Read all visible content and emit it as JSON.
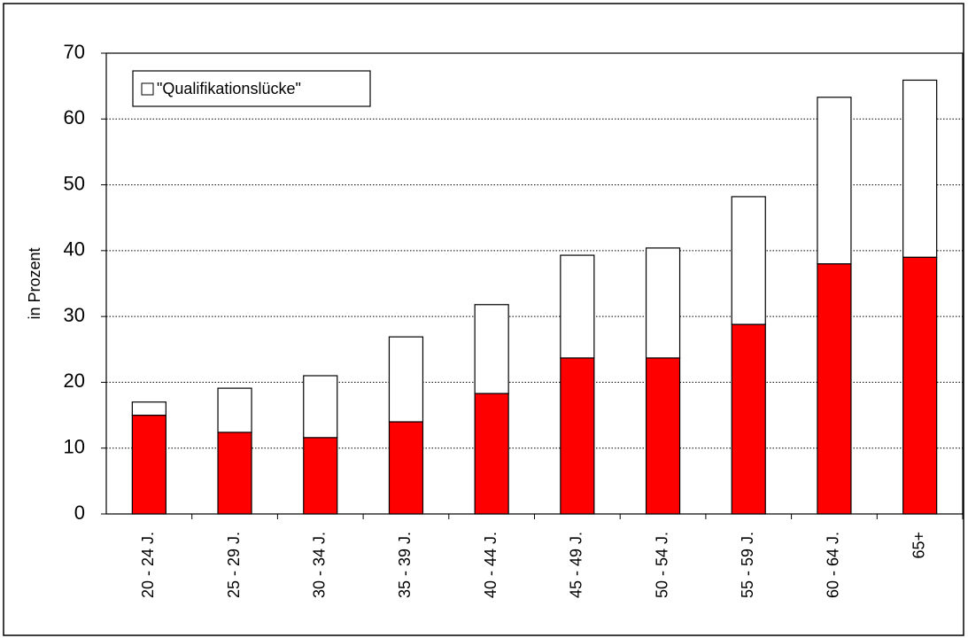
{
  "chart_data": {
    "type": "stacked-bar",
    "y_label": "in Prozent",
    "categories": [
      "20 - 24 J.",
      "25 - 29 J.",
      "30 - 34 J.",
      "35 - 39 J.",
      "40 - 44 J.",
      "45 - 49 J.",
      "50 - 54 J.",
      "55 - 59 J.",
      "60 - 64 J.",
      "65+"
    ],
    "series": [
      {
        "color": "#ff0000",
        "values": [
          15,
          12.4,
          11.6,
          14,
          18.3,
          23.7,
          23.7,
          28.8,
          38,
          39
        ]
      },
      {
        "name": "\"Qualifikationslücke\"",
        "color": "#ffffff",
        "values": [
          2,
          6.7,
          9.4,
          12.9,
          13.5,
          15.6,
          16.7,
          19.4,
          25.3,
          26.9
        ]
      }
    ],
    "ylim": [
      0,
      70
    ],
    "yticks": [
      0,
      10,
      20,
      30,
      40,
      50,
      60,
      70
    ],
    "grid": true,
    "legend": "top-left"
  }
}
